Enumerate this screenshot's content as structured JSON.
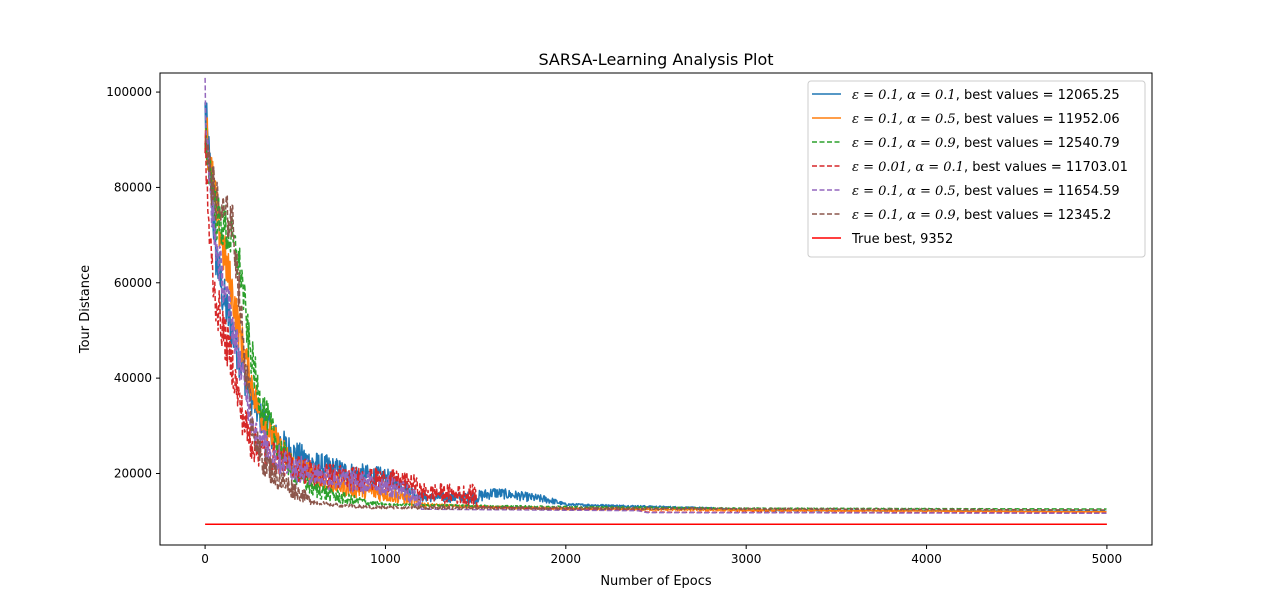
{
  "chart_data": {
    "type": "line",
    "title": "SARSA-Learning Analysis Plot",
    "xlabel": "Number of Epocs",
    "ylabel": "Tour Distance",
    "xlim": [
      -250,
      5250
    ],
    "ylim": [
      5000,
      104000
    ],
    "xticks": [
      0,
      1000,
      2000,
      3000,
      4000,
      5000
    ],
    "yticks": [
      20000,
      40000,
      60000,
      80000,
      100000
    ],
    "xtick_labels": [
      "0",
      "1000",
      "2000",
      "3000",
      "4000",
      "5000"
    ],
    "ytick_labels": [
      "20000",
      "40000",
      "60000",
      "80000",
      "100000"
    ],
    "grid": false,
    "legend_position": "top-right",
    "series": [
      {
        "name": "ε = 0.1, α = 0.1, best values = 12065.25",
        "legend_prefix": "ε = 0.1, α = 0.1",
        "legend_suffix": ", best values = 12065.25",
        "color": "#1f77b4",
        "dash": "solid",
        "points": [
          [
            0,
            96000
          ],
          [
            30,
            82000
          ],
          [
            60,
            66000
          ],
          [
            100,
            57000
          ],
          [
            150,
            50000
          ],
          [
            200,
            43000
          ],
          [
            250,
            37000
          ],
          [
            300,
            32000
          ],
          [
            400,
            27000
          ],
          [
            500,
            24000
          ],
          [
            600,
            22000
          ],
          [
            700,
            21000
          ],
          [
            800,
            20000
          ],
          [
            1000,
            19000
          ],
          [
            1100,
            17500
          ],
          [
            1200,
            15000
          ],
          [
            1500,
            15000
          ],
          [
            1600,
            16000
          ],
          [
            1700,
            15500
          ],
          [
            1900,
            14500
          ],
          [
            2000,
            13500
          ],
          [
            2500,
            13000
          ],
          [
            2800,
            12700
          ],
          [
            3000,
            12300
          ],
          [
            5000,
            12065
          ]
        ],
        "noise": [
          [
            0,
            6000
          ],
          [
            300,
            3500
          ],
          [
            600,
            2800
          ],
          [
            1000,
            2200
          ],
          [
            1200,
            900
          ],
          [
            1500,
            1300
          ],
          [
            1900,
            800
          ],
          [
            2000,
            250
          ],
          [
            5000,
            0
          ]
        ]
      },
      {
        "name": "ε = 0.1, α = 0.5, best values = 11952.06",
        "legend_prefix": "ε = 0.1, α = 0.5",
        "legend_suffix": ", best values = 11952.06",
        "color": "#ff7f0e",
        "dash": "solid",
        "points": [
          [
            0,
            94000
          ],
          [
            50,
            78000
          ],
          [
            100,
            67000
          ],
          [
            150,
            58000
          ],
          [
            200,
            48000
          ],
          [
            250,
            40000
          ],
          [
            300,
            33000
          ],
          [
            400,
            26000
          ],
          [
            500,
            21000
          ],
          [
            700,
            18000
          ],
          [
            900,
            16500
          ],
          [
            1100,
            15000
          ],
          [
            1200,
            13500
          ],
          [
            1500,
            13000
          ],
          [
            2000,
            12600
          ],
          [
            3000,
            12300
          ],
          [
            5000,
            11952
          ]
        ],
        "noise": [
          [
            0,
            6000
          ],
          [
            300,
            3500
          ],
          [
            700,
            2500
          ],
          [
            1100,
            1500
          ],
          [
            1250,
            300
          ],
          [
            5000,
            0
          ]
        ]
      },
      {
        "name": "ε = 0.1, α = 0.9, best values = 12540.79",
        "legend_prefix": "ε = 0.1, α = 0.9",
        "legend_suffix": ", best values = 12540.79",
        "color": "#2ca02c",
        "dash": "dashed",
        "points": [
          [
            0,
            92000
          ],
          [
            60,
            74000
          ],
          [
            150,
            69000
          ],
          [
            200,
            62000
          ],
          [
            240,
            48000
          ],
          [
            300,
            36000
          ],
          [
            400,
            26000
          ],
          [
            500,
            20000
          ],
          [
            600,
            17000
          ],
          [
            700,
            15500
          ],
          [
            800,
            14500
          ],
          [
            1000,
            13500
          ],
          [
            2000,
            13000
          ],
          [
            3000,
            12700
          ],
          [
            5000,
            12540
          ]
        ],
        "noise": [
          [
            0,
            5500
          ],
          [
            250,
            4500
          ],
          [
            500,
            2500
          ],
          [
            800,
            1200
          ],
          [
            1000,
            200
          ],
          [
            5000,
            0
          ]
        ]
      },
      {
        "name": "ε = 0.01, α = 0.1, best values = 11703.01",
        "legend_prefix": "ε = 0.01, α = 0.1",
        "legend_suffix": ", best values = 11703.01",
        "color": "#d62728",
        "dash": "dashed",
        "points": [
          [
            0,
            90000
          ],
          [
            20,
            72000
          ],
          [
            50,
            58000
          ],
          [
            100,
            50000
          ],
          [
            150,
            43000
          ],
          [
            200,
            33000
          ],
          [
            250,
            27000
          ],
          [
            300,
            25000
          ],
          [
            400,
            23000
          ],
          [
            500,
            21500
          ],
          [
            600,
            20000
          ],
          [
            800,
            19000
          ],
          [
            1000,
            18500
          ],
          [
            1150,
            18000
          ],
          [
            1200,
            16000
          ],
          [
            1500,
            15500
          ],
          [
            1510,
            13000
          ],
          [
            2000,
            12500
          ],
          [
            2400,
            12300
          ],
          [
            2450,
            11900
          ],
          [
            5000,
            11703
          ]
        ],
        "noise": [
          [
            0,
            5000
          ],
          [
            200,
            4500
          ],
          [
            400,
            3000
          ],
          [
            1000,
            2500
          ],
          [
            1200,
            2000
          ],
          [
            1500,
            2200
          ],
          [
            1510,
            0
          ],
          [
            5000,
            0
          ]
        ]
      },
      {
        "name": "ε = 0.1, α = 0.5, best values = 11654.59",
        "legend_prefix": "ε = 0.1, α = 0.5",
        "legend_suffix": ", best values = 11654.59",
        "color": "#9467bd",
        "dash": "dashed",
        "points": [
          [
            0,
            99000
          ],
          [
            20,
            82000
          ],
          [
            60,
            68000
          ],
          [
            100,
            60000
          ],
          [
            150,
            52000
          ],
          [
            200,
            42000
          ],
          [
            250,
            33000
          ],
          [
            300,
            27000
          ],
          [
            400,
            23000
          ],
          [
            500,
            21000
          ],
          [
            700,
            19000
          ],
          [
            900,
            18000
          ],
          [
            1000,
            17500
          ],
          [
            1100,
            16500
          ],
          [
            1190,
            14000
          ],
          [
            1200,
            12500
          ],
          [
            2400,
            12200
          ],
          [
            2450,
            11800
          ],
          [
            5000,
            11654
          ]
        ],
        "noise": [
          [
            0,
            5000
          ],
          [
            200,
            4000
          ],
          [
            500,
            3000
          ],
          [
            800,
            2500
          ],
          [
            1100,
            2200
          ],
          [
            1195,
            1500
          ],
          [
            1200,
            0
          ],
          [
            5000,
            0
          ]
        ]
      },
      {
        "name": "ε = 0.1, α = 0.9, best values = 12345.2",
        "legend_prefix": "ε = 0.1, α = 0.9",
        "legend_suffix": ", best values = 12345.2",
        "color": "#8c564b",
        "dash": "dashed",
        "points": [
          [
            0,
            92000
          ],
          [
            30,
            82000
          ],
          [
            80,
            75000
          ],
          [
            150,
            73000
          ],
          [
            180,
            62000
          ],
          [
            220,
            44000
          ],
          [
            260,
            31000
          ],
          [
            300,
            24000
          ],
          [
            400,
            19000
          ],
          [
            500,
            16500
          ],
          [
            600,
            14000
          ],
          [
            700,
            13500
          ],
          [
            900,
            12900
          ],
          [
            2000,
            12700
          ],
          [
            5000,
            12345
          ]
        ],
        "noise": [
          [
            0,
            5000
          ],
          [
            170,
            4500
          ],
          [
            300,
            3500
          ],
          [
            500,
            2000
          ],
          [
            620,
            400
          ],
          [
            5000,
            0
          ]
        ]
      },
      {
        "name": "True best, 9352",
        "legend_prefix": "",
        "legend_suffix": "True best, 9352",
        "color": "#ff0000",
        "dash": "solid",
        "points": [
          [
            0,
            9352
          ],
          [
            5000,
            9352
          ]
        ],
        "noise": [
          [
            0,
            0
          ],
          [
            5000,
            0
          ]
        ]
      }
    ]
  }
}
